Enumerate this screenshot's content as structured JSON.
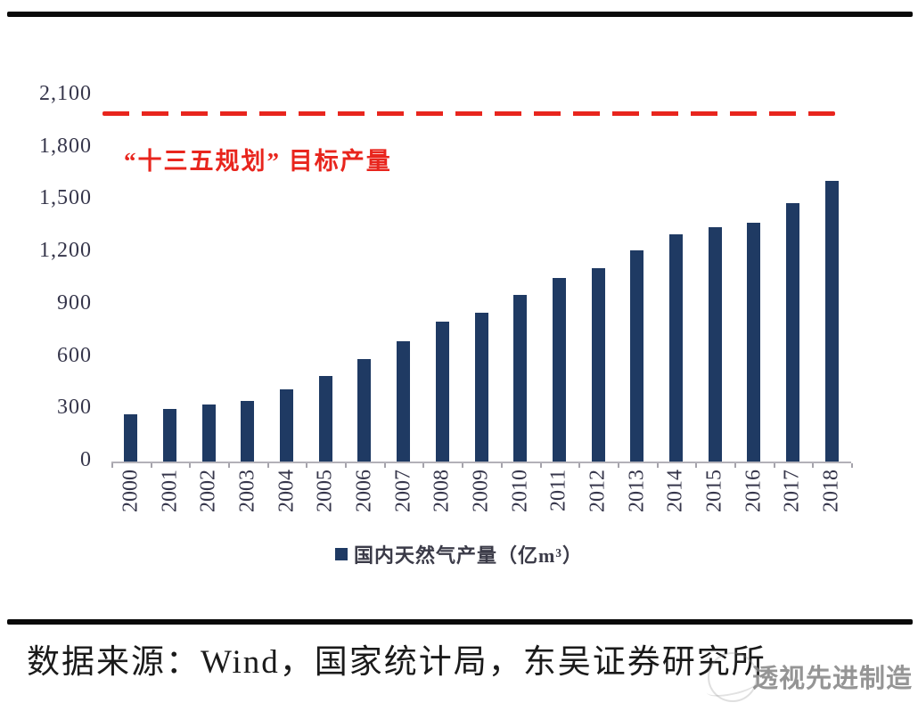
{
  "chart_data": {
    "type": "bar",
    "categories": [
      "2000",
      "2001",
      "2002",
      "2003",
      "2004",
      "2005",
      "2006",
      "2007",
      "2008",
      "2009",
      "2010",
      "2011",
      "2012",
      "2013",
      "2014",
      "2015",
      "2016",
      "2017",
      "2018"
    ],
    "values": [
      272,
      303,
      327,
      350,
      415,
      493,
      586,
      692,
      803,
      853,
      958,
      1053,
      1107,
      1209,
      1302,
      1346,
      1369,
      1480,
      1610
    ],
    "series_name": "国内天然气产量（亿m³）",
    "title": "",
    "xlabel": "",
    "ylabel": "",
    "ylim": [
      0,
      2100
    ],
    "ytick_step": 300,
    "ytick_labels": [
      "0",
      "300",
      "600",
      "900",
      "1,200",
      "1,500",
      "1,800",
      "2,100"
    ],
    "grid": false,
    "legend_position": "bottom",
    "target_line": {
      "value": 2000,
      "label": "“十三五规划” 目标产量",
      "color": "#E8251D",
      "style": "dashed"
    }
  },
  "legend": {
    "marker": "navy-square",
    "label": "国内天然气产量（亿m³）"
  },
  "footer": {
    "source": "数据来源：Wind，国家统计局，东吴证券研究所",
    "watermark": "透视先进制造"
  },
  "colors": {
    "bar": "#1F3A63",
    "target_line": "#E8251D",
    "axis_text": "#35354a",
    "divider": "#0a0a0a",
    "watermark": "#868686"
  }
}
